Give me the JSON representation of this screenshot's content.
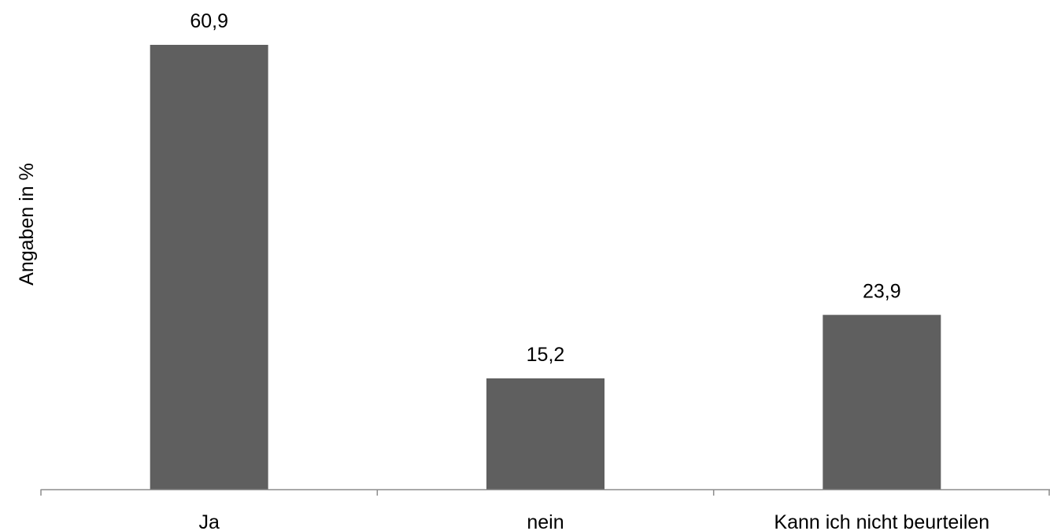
{
  "chart_data": {
    "type": "bar",
    "title": "",
    "xlabel": "",
    "ylabel": "Angaben in %",
    "categories": [
      "Ja",
      "nein",
      "Kann ich nicht beurteilen"
    ],
    "values": [
      60.9,
      15.2,
      23.9
    ],
    "value_labels": [
      "60,9",
      "15,2",
      "23,9"
    ],
    "ylim": [
      0,
      61
    ],
    "grid": false,
    "legend": "none",
    "bar_color": "#5f5f5f",
    "axis_color": "#8c8c8c"
  }
}
